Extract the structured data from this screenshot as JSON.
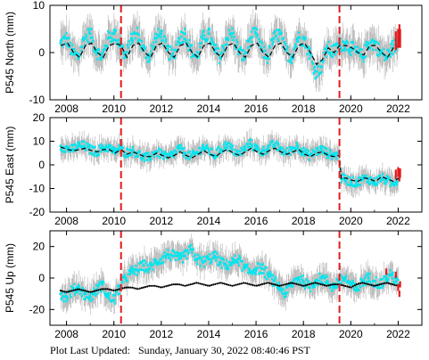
{
  "footer": {
    "label": "Plot Last Updated:",
    "timestamp": "Sunday, January 30, 2022 08:40:46 PST"
  },
  "colors": {
    "raw_error": "#b4b4b4",
    "daily": "#00e5ee",
    "recent": "#e31a1c",
    "model": "#000000",
    "event_line": "#e31a1c"
  },
  "chart_data": [
    {
      "type": "scatter",
      "ylabel": "P545 North (mm)",
      "xlim": [
        2007.3,
        2023.0
      ],
      "ylim": [
        -10,
        10
      ],
      "yticks": [
        -10,
        0,
        10
      ],
      "xticks": [
        2008,
        2010,
        2012,
        2014,
        2016,
        2018,
        2020,
        2022
      ],
      "event_lines": [
        2010.3,
        2019.52
      ],
      "series": [
        {
          "role": "model",
          "style": "dashed",
          "x": [
            2007.75,
            2008.05,
            2008.3,
            2008.55,
            2008.8,
            2009.05,
            2009.3,
            2009.55,
            2009.8,
            2010.05,
            2010.3,
            2010.55,
            2010.8,
            2011.05,
            2011.3,
            2011.55,
            2011.8,
            2012.05,
            2012.3,
            2012.55,
            2012.8,
            2013.05,
            2013.3,
            2013.55,
            2013.8,
            2014.05,
            2014.3,
            2014.55,
            2014.8,
            2015.05,
            2015.3,
            2015.55,
            2015.8,
            2016.05,
            2016.3,
            2016.55,
            2016.8,
            2017.05,
            2017.3,
            2017.55,
            2017.8,
            2018.05,
            2018.3,
            2018.55,
            2018.8,
            2019.05,
            2019.3,
            2019.52,
            2019.8,
            2020.05,
            2020.3,
            2020.55,
            2020.8,
            2021.05,
            2021.3,
            2021.55,
            2021.8,
            2022.05
          ],
          "y": [
            1.5,
            2.0,
            0.0,
            -1.0,
            1.5,
            2.0,
            0.0,
            -1.0,
            1.5,
            2.0,
            1.5,
            -1.0,
            1.5,
            2.0,
            0.0,
            -1.0,
            1.5,
            2.0,
            0.0,
            -1.0,
            1.5,
            2.0,
            0.0,
            -1.0,
            1.5,
            2.0,
            0.0,
            -1.0,
            1.5,
            2.0,
            0.0,
            -1.0,
            1.5,
            2.0,
            0.0,
            -1.0,
            1.5,
            2.0,
            0.0,
            -1.0,
            1.5,
            2.0,
            0.0,
            -2.5,
            -1.5,
            1.0,
            0.0,
            1.5,
            1.5,
            1.0,
            0.0,
            -0.5,
            1.5,
            1.5,
            0.0,
            -1.0,
            1.0,
            1.5
          ]
        },
        {
          "role": "daily",
          "x": [
            2007.75,
            2008.0,
            2008.25,
            2008.5,
            2008.75,
            2009.0,
            2009.25,
            2009.5,
            2009.75,
            2010.0,
            2010.25,
            2010.5,
            2010.75,
            2011.0,
            2011.25,
            2011.5,
            2011.75,
            2012.0,
            2012.25,
            2012.5,
            2012.75,
            2013.0,
            2013.25,
            2013.5,
            2013.75,
            2014.0,
            2014.25,
            2014.5,
            2014.75,
            2015.0,
            2015.25,
            2015.5,
            2015.75,
            2016.0,
            2016.25,
            2016.5,
            2016.75,
            2017.0,
            2017.25,
            2017.5,
            2017.75,
            2018.0,
            2018.25,
            2018.5,
            2018.75,
            2019.0,
            2019.25,
            2019.5,
            2019.75,
            2020.0,
            2020.25,
            2020.5,
            2020.75,
            2021.0,
            2021.25,
            2021.5,
            2021.75,
            2022.0
          ],
          "y": [
            2.0,
            3.0,
            0.0,
            -1.0,
            3.0,
            4.0,
            0.5,
            -1.0,
            3.0,
            4.0,
            2.0,
            -1.0,
            3.0,
            4.0,
            0.5,
            -1.0,
            3.0,
            4.0,
            0.5,
            -1.0,
            3.0,
            4.0,
            0.5,
            -1.0,
            3.0,
            4.0,
            0.5,
            -1.0,
            3.0,
            4.0,
            0.5,
            -1.0,
            3.0,
            4.0,
            0.5,
            -1.0,
            3.0,
            4.0,
            0.5,
            -1.0,
            3.0,
            3.0,
            0.0,
            -4.0,
            -3.0,
            1.0,
            0.0,
            1.5,
            2.0,
            1.0,
            0.0,
            -1.0,
            2.0,
            2.0,
            0.0,
            -1.0,
            1.0,
            2.0
          ],
          "error": 3.5
        },
        {
          "role": "recent",
          "x": [
            2021.9,
            2022.0,
            2022.05,
            2022.08
          ],
          "y": [
            2.5,
            3.0,
            4.0,
            3.0
          ]
        }
      ]
    },
    {
      "type": "scatter",
      "ylabel": "P545 East (mm)",
      "xlim": [
        2007.3,
        2023.0
      ],
      "ylim": [
        -20,
        20
      ],
      "yticks": [
        -20,
        -10,
        0,
        10,
        20
      ],
      "xticks": [
        2008,
        2010,
        2012,
        2014,
        2016,
        2018,
        2020,
        2022
      ],
      "event_lines": [
        2010.3,
        2019.52
      ],
      "series": [
        {
          "role": "model",
          "style": "dashed",
          "x": [
            2007.75,
            2008.05,
            2008.3,
            2008.55,
            2008.8,
            2009.05,
            2009.3,
            2009.55,
            2009.8,
            2010.05,
            2010.3,
            2010.55,
            2010.8,
            2011.05,
            2011.3,
            2011.55,
            2011.8,
            2012.05,
            2012.3,
            2012.55,
            2012.8,
            2013.05,
            2013.3,
            2013.55,
            2013.8,
            2014.05,
            2014.3,
            2014.55,
            2014.8,
            2015.05,
            2015.3,
            2015.55,
            2015.8,
            2016.05,
            2016.3,
            2016.55,
            2016.8,
            2017.05,
            2017.3,
            2017.55,
            2017.8,
            2018.05,
            2018.3,
            2018.55,
            2018.8,
            2019.05,
            2019.3,
            2019.52,
            2019.6,
            2019.8,
            2020.05,
            2020.3,
            2020.55,
            2020.8,
            2021.05,
            2021.3,
            2021.55,
            2021.8,
            2022.05
          ],
          "y": [
            7.5,
            6.5,
            6.0,
            6.5,
            7.0,
            6.0,
            5.5,
            6.5,
            6.5,
            5.0,
            6.5,
            4.5,
            5.5,
            4.5,
            3.5,
            3.5,
            5.0,
            4.0,
            3.0,
            4.0,
            5.5,
            4.0,
            3.0,
            4.5,
            6.0,
            4.5,
            3.5,
            5.5,
            6.5,
            5.0,
            4.0,
            5.5,
            7.0,
            5.5,
            4.5,
            6.0,
            7.0,
            5.5,
            4.5,
            5.5,
            6.5,
            4.5,
            3.5,
            5.0,
            5.5,
            4.0,
            3.5,
            4.0,
            -6.0,
            -5.5,
            -6.5,
            -7.0,
            -5.5,
            -6.0,
            -7.0,
            -5.0,
            -6.0,
            -7.0,
            -5.5
          ]
        },
        {
          "role": "daily",
          "x": [
            2007.75,
            2008.0,
            2008.25,
            2008.5,
            2008.75,
            2009.0,
            2009.25,
            2009.5,
            2009.75,
            2010.0,
            2010.25,
            2010.5,
            2010.75,
            2011.0,
            2011.25,
            2011.5,
            2011.75,
            2012.0,
            2012.25,
            2012.5,
            2012.75,
            2013.0,
            2013.25,
            2013.5,
            2013.75,
            2014.0,
            2014.25,
            2014.5,
            2014.75,
            2015.0,
            2015.25,
            2015.5,
            2015.75,
            2016.0,
            2016.25,
            2016.5,
            2016.75,
            2017.0,
            2017.25,
            2017.5,
            2017.75,
            2018.0,
            2018.25,
            2018.5,
            2018.75,
            2019.0,
            2019.25,
            2019.5,
            2019.6,
            2019.75,
            2020.0,
            2020.25,
            2020.5,
            2020.75,
            2021.0,
            2021.25,
            2021.5,
            2021.75,
            2022.0
          ],
          "y": [
            8.0,
            7.0,
            6.5,
            8.0,
            8.0,
            6.5,
            5.5,
            7.0,
            7.5,
            5.5,
            7.0,
            5.0,
            6.0,
            5.0,
            3.0,
            3.0,
            5.5,
            4.5,
            3.0,
            4.5,
            7.0,
            5.0,
            3.5,
            5.0,
            7.5,
            6.0,
            4.0,
            6.5,
            8.5,
            6.5,
            4.5,
            6.5,
            9.0,
            7.0,
            5.5,
            7.0,
            8.5,
            7.0,
            5.0,
            6.5,
            8.0,
            5.5,
            4.0,
            5.5,
            6.5,
            5.0,
            4.0,
            4.5,
            -6.0,
            -6.0,
            -7.0,
            -7.5,
            -6.0,
            -6.0,
            -7.5,
            -5.5,
            -6.5,
            -8.0,
            -6.0
          ],
          "error": 4.5
        },
        {
          "role": "recent",
          "x": [
            2021.9,
            2022.0,
            2022.05,
            2022.08
          ],
          "y": [
            -4.0,
            -3.0,
            -5.0,
            -3.5
          ]
        }
      ]
    },
    {
      "type": "scatter",
      "ylabel": "P545 Up (mm)",
      "xlim": [
        2007.3,
        2023.0
      ],
      "ylim": [
        -30,
        30
      ],
      "yticks": [
        -20,
        0,
        20
      ],
      "xticks": [
        2008,
        2010,
        2012,
        2014,
        2016,
        2018,
        2020,
        2022
      ],
      "event_lines": [
        2010.3,
        2019.52
      ],
      "series": [
        {
          "role": "model",
          "style": "dotted",
          "x": [
            2007.75,
            2008.0,
            2008.25,
            2008.5,
            2008.75,
            2009.0,
            2009.25,
            2009.5,
            2009.75,
            2010.0,
            2010.25,
            2010.5,
            2010.75,
            2011.0,
            2011.25,
            2011.5,
            2011.75,
            2012.0,
            2012.25,
            2012.5,
            2012.75,
            2013.0,
            2013.25,
            2013.5,
            2013.75,
            2014.0,
            2014.25,
            2014.5,
            2014.75,
            2015.0,
            2015.25,
            2015.5,
            2015.75,
            2016.0,
            2016.25,
            2016.5,
            2016.75,
            2017.0,
            2017.25,
            2017.5,
            2017.75,
            2018.0,
            2018.25,
            2018.5,
            2018.75,
            2019.0,
            2019.25,
            2019.5,
            2019.75,
            2020.0,
            2020.25,
            2020.5,
            2020.75,
            2021.0,
            2021.25,
            2021.5,
            2021.75,
            2022.0
          ],
          "y": [
            -8.0,
            -9.0,
            -8.0,
            -7.0,
            -8.0,
            -9.0,
            -8.0,
            -7.0,
            -7.0,
            -8.0,
            -7.0,
            -6.0,
            -6.0,
            -7.0,
            -6.0,
            -5.0,
            -5.0,
            -6.0,
            -5.0,
            -4.0,
            -4.0,
            -5.0,
            -4.0,
            -3.0,
            -4.0,
            -5.0,
            -4.0,
            -3.0,
            -4.0,
            -5.0,
            -4.0,
            -3.0,
            -4.0,
            -5.0,
            -4.0,
            -3.0,
            -4.0,
            -5.0,
            -4.0,
            -3.0,
            -4.0,
            -5.0,
            -4.0,
            -3.0,
            -4.0,
            -5.0,
            -4.0,
            -4.0,
            -5.0,
            -6.0,
            -4.0,
            -3.0,
            -4.0,
            -5.0,
            -4.0,
            -3.0,
            -4.0,
            -5.0
          ]
        },
        {
          "role": "daily",
          "x": [
            2007.75,
            2008.0,
            2008.25,
            2008.5,
            2008.75,
            2009.0,
            2009.25,
            2009.5,
            2009.75,
            2010.0,
            2010.25,
            2010.5,
            2010.75,
            2011.0,
            2011.25,
            2011.5,
            2011.75,
            2012.0,
            2012.25,
            2012.5,
            2012.75,
            2013.0,
            2013.25,
            2013.5,
            2013.75,
            2014.0,
            2014.25,
            2014.5,
            2014.75,
            2015.0,
            2015.25,
            2015.5,
            2015.75,
            2016.0,
            2016.25,
            2016.5,
            2016.75,
            2017.0,
            2017.25,
            2017.5,
            2017.75,
            2018.0,
            2018.25,
            2018.5,
            2018.75,
            2019.0,
            2019.25,
            2019.5,
            2019.75,
            2020.0,
            2020.25,
            2020.5,
            2020.75,
            2021.0,
            2021.25,
            2021.5,
            2021.75,
            2022.0
          ],
          "y": [
            -10.0,
            -12.0,
            -8.0,
            -6.0,
            -10.0,
            -12.0,
            -8.0,
            -4.0,
            -12.0,
            -14.0,
            -6.0,
            0.0,
            4.0,
            5.0,
            8.0,
            6.0,
            10.0,
            12.0,
            15.0,
            14.0,
            12.0,
            14.0,
            18.0,
            12.0,
            10.0,
            12.0,
            14.0,
            10.0,
            8.0,
            10.0,
            12.0,
            6.0,
            4.0,
            6.0,
            6.0,
            2.0,
            -2.0,
            -6.0,
            -10.0,
            -4.0,
            0.0,
            -2.0,
            -6.0,
            -2.0,
            0.0,
            -2.0,
            -6.0,
            -2.0,
            0.0,
            -4.0,
            -8.0,
            -2.0,
            0.0,
            -2.0,
            -4.0,
            0.0,
            2.0,
            -4.0
          ],
          "error": 8.0
        },
        {
          "role": "recent",
          "x": [
            2021.5,
            2021.9,
            2022.0,
            2022.05,
            2022.08
          ],
          "y": [
            4.0,
            2.0,
            -6.0,
            -10.0,
            -4.0
          ]
        }
      ]
    }
  ]
}
